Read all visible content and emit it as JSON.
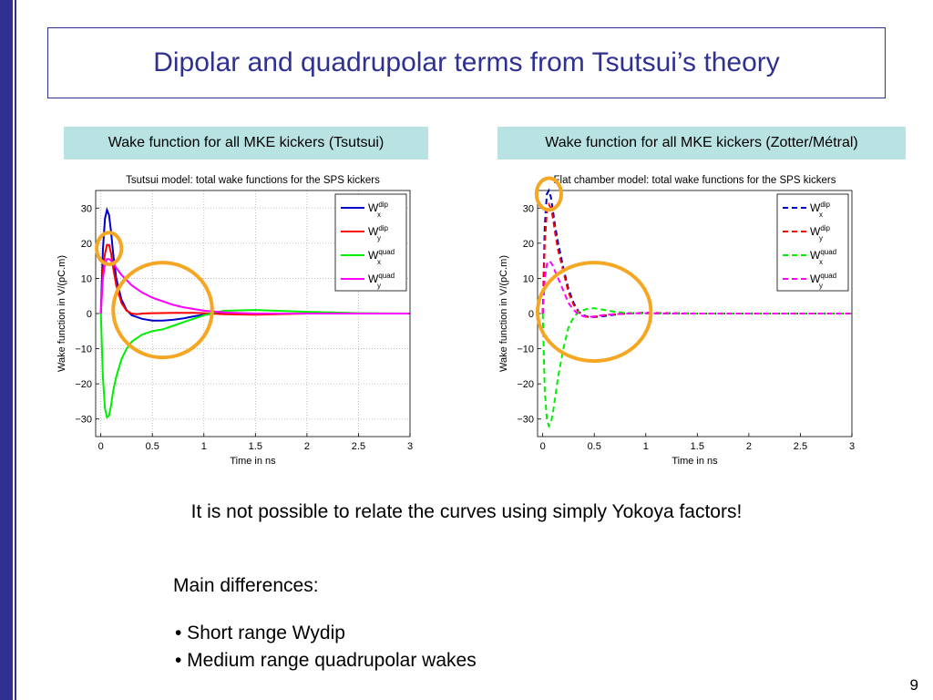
{
  "slide": {
    "title": "Dipolar and quadrupolar terms from Tsutsui’s theory",
    "caption_left": "Wake function for all MKE kickers (Tsutsui)",
    "caption_right": "Wake function for all MKE kickers (Zotter/Métral)",
    "conclusion": "It is not possible to relate the curves using simply Yokoya factors!",
    "differences_heading": "Main differences:",
    "differences": [
      "• Short range Wydip",
      "• Medium range quadrupolar wakes"
    ],
    "page_number": "9",
    "colors": {
      "theme": "#2e3192",
      "caption_bg": "#b9e3e3",
      "highlight": "#f5a623"
    }
  },
  "chart_data": [
    {
      "type": "line",
      "title": "Tsutsui model: total wake functions for the SPS kickers",
      "xlabel": "Time in ns",
      "ylabel": "Wake function in V/(pC.m)",
      "xlim": [
        -0.05,
        3
      ],
      "ylim": [
        -35,
        35
      ],
      "xticks": [
        0,
        0.5,
        1,
        1.5,
        2,
        2.5,
        3
      ],
      "xtick_labels": [
        "0",
        "0.5",
        "1",
        "1.5",
        "2",
        "2.5",
        "3"
      ],
      "yticks": [
        30,
        20,
        10,
        0,
        -10,
        -20,
        -30
      ],
      "ytick_labels": [
        "30",
        "20",
        "10",
        "0",
        "−10",
        "−20",
        "−30"
      ],
      "grid": true,
      "legend_position": "top-right",
      "line_style": "solid",
      "highlight_circles": [
        {
          "cx": 0.08,
          "cy": 18.5,
          "rx": 0.12,
          "ry": 4.5
        },
        {
          "cx": 0.6,
          "cy": 1,
          "rx": 0.48,
          "ry": 13.5
        }
      ],
      "series": [
        {
          "base": "W",
          "sup": "dip",
          "sub": "x",
          "color": "#0000cc",
          "x": [
            0,
            0.02,
            0.04,
            0.06,
            0.08,
            0.1,
            0.12,
            0.15,
            0.2,
            0.25,
            0.3,
            0.4,
            0.5,
            0.6,
            0.7,
            0.8,
            0.9,
            1.0,
            1.1,
            1.2,
            1.5,
            2.0,
            3.0
          ],
          "y": [
            0,
            18,
            27,
            29.5,
            28,
            23,
            17,
            10,
            4,
            1,
            -0.5,
            -1.5,
            -2,
            -2,
            -1.8,
            -1.4,
            -0.8,
            -0.3,
            0,
            0.1,
            0,
            0,
            0
          ]
        },
        {
          "base": "W",
          "sup": "dip",
          "sub": "y",
          "color": "#ff0000",
          "x": [
            0,
            0.02,
            0.04,
            0.06,
            0.08,
            0.1,
            0.12,
            0.15,
            0.2,
            0.25,
            0.3,
            0.35,
            0.4,
            0.5,
            0.7,
            0.9,
            1.0,
            1.2,
            1.5,
            2.0,
            3.0
          ],
          "y": [
            0,
            12,
            17,
            19.5,
            19.5,
            17,
            13,
            8,
            3,
            0.8,
            0,
            -0.2,
            0,
            0.1,
            0.2,
            0.2,
            0.1,
            -0.2,
            -0.3,
            0,
            0
          ]
        },
        {
          "base": "W",
          "sup": "quad",
          "sub": "x",
          "color": "#00ee00",
          "x": [
            0,
            0.02,
            0.04,
            0.06,
            0.08,
            0.1,
            0.12,
            0.15,
            0.2,
            0.25,
            0.3,
            0.4,
            0.5,
            0.6,
            0.7,
            0.8,
            0.9,
            1.0,
            1.1,
            1.2,
            1.5,
            2.0,
            2.5,
            3.0
          ],
          "y": [
            0,
            -18,
            -27,
            -29.5,
            -29,
            -26,
            -22,
            -18,
            -13,
            -10,
            -8,
            -6,
            -5,
            -4.5,
            -3.5,
            -2.5,
            -1.5,
            -0.5,
            0.3,
            0.8,
            1,
            0.5,
            0.1,
            0
          ]
        },
        {
          "base": "W",
          "sup": "quad",
          "sub": "y",
          "color": "#ff00ff",
          "x": [
            0,
            0.02,
            0.04,
            0.06,
            0.08,
            0.1,
            0.15,
            0.2,
            0.3,
            0.4,
            0.5,
            0.6,
            0.7,
            0.8,
            1.0,
            1.2,
            1.5,
            2.0,
            3.0
          ],
          "y": [
            0,
            10,
            14,
            15.5,
            15.5,
            15,
            13,
            11,
            8,
            6,
            4.5,
            3.5,
            2.5,
            1.8,
            0.8,
            0.3,
            0,
            0,
            0
          ]
        }
      ]
    },
    {
      "type": "line",
      "title": "Flat chamber model: total wake functions for the SPS kickers",
      "xlabel": "Time in ns",
      "ylabel": "Wake function in V/(pC.m)",
      "xlim": [
        -0.05,
        3
      ],
      "ylim": [
        -35,
        35
      ],
      "xticks": [
        0,
        0.5,
        1,
        1.5,
        2,
        2.5,
        3
      ],
      "xtick_labels": [
        "0",
        "0.5",
        "1",
        "1.5",
        "2",
        "2.5",
        "3"
      ],
      "yticks": [
        30,
        20,
        10,
        0,
        -10,
        -20,
        -30
      ],
      "ytick_labels": [
        "30",
        "20",
        "10",
        "0",
        "−10",
        "−20",
        "−30"
      ],
      "grid": false,
      "legend_position": "top-right",
      "line_style": "dashed",
      "highlight_circles": [
        {
          "cx": 0.06,
          "cy": 34,
          "rx": 0.12,
          "ry": 4.5
        },
        {
          "cx": 0.5,
          "cy": 0.5,
          "rx": 0.55,
          "ry": 14
        }
      ],
      "series": [
        {
          "base": "W",
          "sup": "dip",
          "sub": "x",
          "color": "#0000cc",
          "x": [
            0,
            0.02,
            0.04,
            0.06,
            0.08,
            0.1,
            0.12,
            0.15,
            0.2,
            0.25,
            0.3,
            0.35,
            0.4,
            0.45,
            0.5,
            0.6,
            0.7,
            0.8,
            1.0,
            1.2,
            1.5,
            2.0,
            3.0
          ],
          "y": [
            0,
            25,
            34,
            35,
            33,
            29,
            25,
            20,
            13,
            7,
            3,
            0.5,
            -0.5,
            -1,
            -1,
            -0.7,
            -0.3,
            0,
            0.2,
            0.1,
            0,
            0,
            0
          ]
        },
        {
          "base": "W",
          "sup": "dip",
          "sub": "y",
          "color": "#ff0000",
          "x": [
            0,
            0.02,
            0.04,
            0.06,
            0.08,
            0.1,
            0.12,
            0.15,
            0.2,
            0.25,
            0.3,
            0.35,
            0.4,
            0.45,
            0.5,
            0.6,
            0.7,
            0.8,
            1.0,
            1.2,
            1.5,
            2.0,
            3.0
          ],
          "y": [
            0,
            20,
            29,
            31,
            30,
            27,
            23,
            18,
            12,
            6,
            2.5,
            0.3,
            -0.8,
            -1,
            -0.9,
            -0.5,
            -0.2,
            0,
            0.2,
            0.1,
            0,
            0,
            0
          ]
        },
        {
          "base": "W",
          "sup": "quad",
          "sub": "x",
          "color": "#00ee00",
          "x": [
            0,
            0.02,
            0.04,
            0.06,
            0.08,
            0.1,
            0.12,
            0.15,
            0.2,
            0.25,
            0.3,
            0.35,
            0.4,
            0.45,
            0.5,
            0.6,
            0.7,
            0.8,
            1.0,
            1.2,
            1.5,
            2.0,
            3.0
          ],
          "y": [
            0,
            -22,
            -30,
            -32,
            -31,
            -28,
            -24,
            -18,
            -10,
            -4,
            -1,
            0.5,
            1,
            1.5,
            1.5,
            1,
            0.5,
            0.2,
            0,
            0,
            0,
            0,
            0
          ]
        },
        {
          "base": "W",
          "sup": "quad",
          "sub": "y",
          "color": "#ff00ff",
          "x": [
            0,
            0.02,
            0.04,
            0.06,
            0.08,
            0.1,
            0.12,
            0.15,
            0.2,
            0.25,
            0.3,
            0.35,
            0.4,
            0.45,
            0.5,
            0.6,
            0.7,
            0.8,
            1.0,
            1.2,
            1.5,
            2.0,
            3.0
          ],
          "y": [
            0,
            10,
            14,
            15,
            14.5,
            13.5,
            12,
            10,
            6.5,
            3,
            1,
            -0.3,
            -0.8,
            -1,
            -0.8,
            -0.4,
            -0.2,
            0,
            0.1,
            0,
            0,
            0,
            0
          ]
        }
      ]
    }
  ]
}
